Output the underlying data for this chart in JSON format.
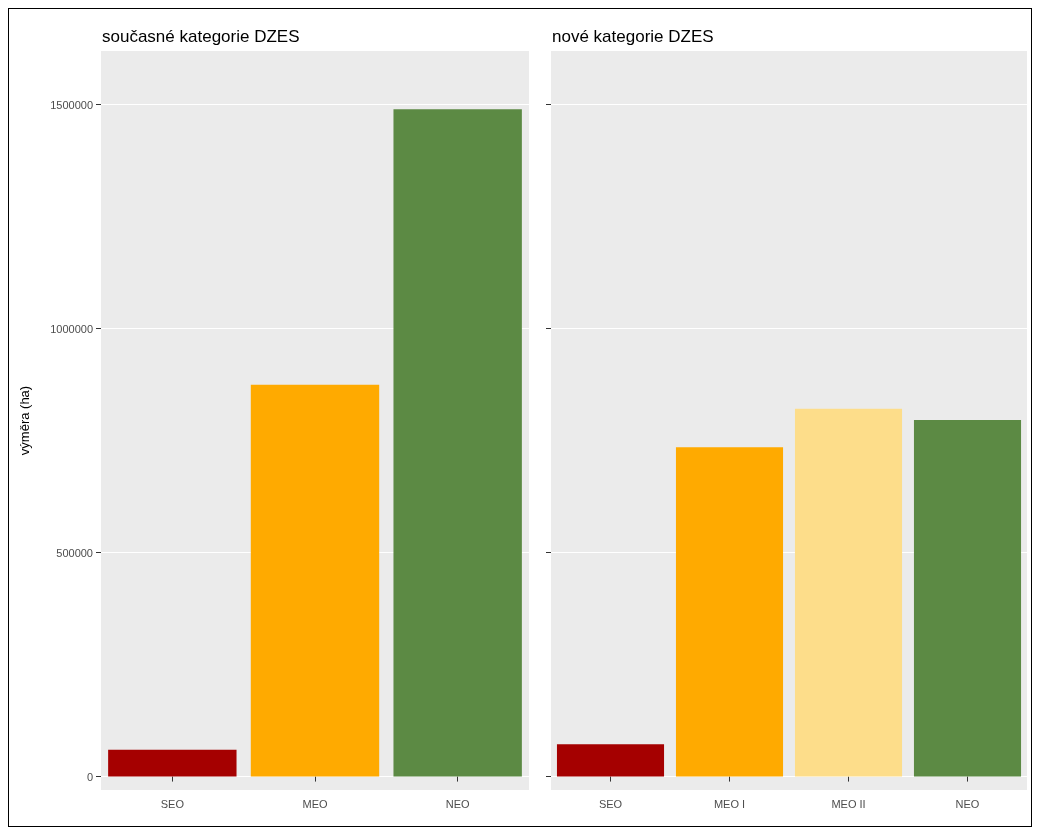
{
  "chart_data": [
    {
      "type": "bar",
      "title": "současné kategorie DZES",
      "ylabel": "výměra (ha)",
      "categories": [
        "SEO",
        "MEO",
        "NEO"
      ],
      "values": [
        60000,
        875000,
        1490000
      ],
      "colors": [
        "#a50000",
        "#ffaa00",
        "#5c8a44"
      ],
      "ylim": [
        -30000,
        1620000
      ],
      "yticks": [
        0,
        500000,
        1000000,
        1500000
      ],
      "grid": true
    },
    {
      "type": "bar",
      "title": "nové kategorie DZES",
      "categories": [
        "SEO",
        "MEO I",
        "MEO II",
        "NEO"
      ],
      "values": [
        72000,
        735000,
        821000,
        796000
      ],
      "colors": [
        "#a50000",
        "#ffaa00",
        "#fddd8a",
        "#5c8a44"
      ],
      "ylim": [
        -30000,
        1620000
      ],
      "yticks": [
        0,
        500000,
        1000000,
        1500000
      ],
      "grid": true,
      "tick_labels": "x"
    }
  ]
}
